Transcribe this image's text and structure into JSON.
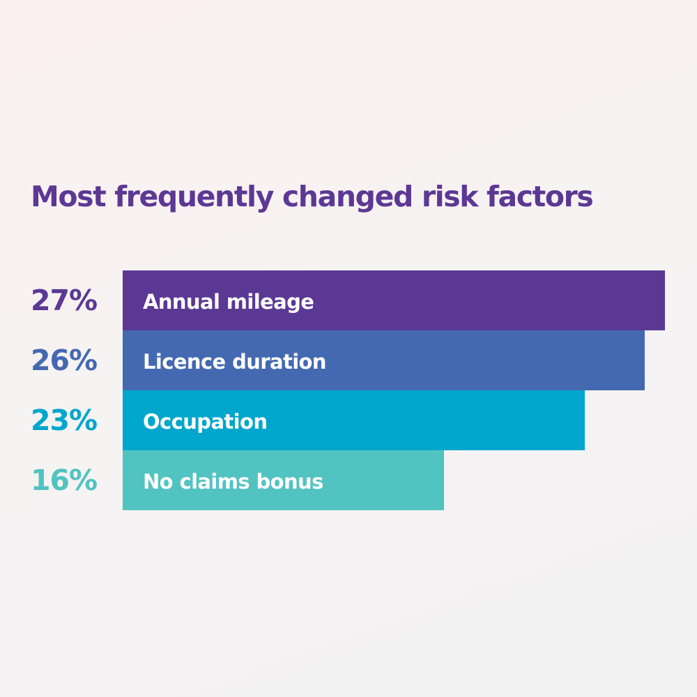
{
  "chart_data": {
    "type": "bar",
    "orientation": "horizontal",
    "title": "Most frequently changed risk factors",
    "categories": [
      "Annual mileage",
      "Licence duration",
      "Occupation",
      "No claims bonus"
    ],
    "values": [
      27,
      26,
      23,
      16
    ],
    "value_labels": [
      "27%",
      "26%",
      "23%",
      "16%"
    ],
    "unit": "%",
    "xlim": [
      0,
      27
    ],
    "grid": false,
    "colors": [
      "#5b3894",
      "#4469b0",
      "#00a6cb",
      "#51c3c0"
    ]
  }
}
